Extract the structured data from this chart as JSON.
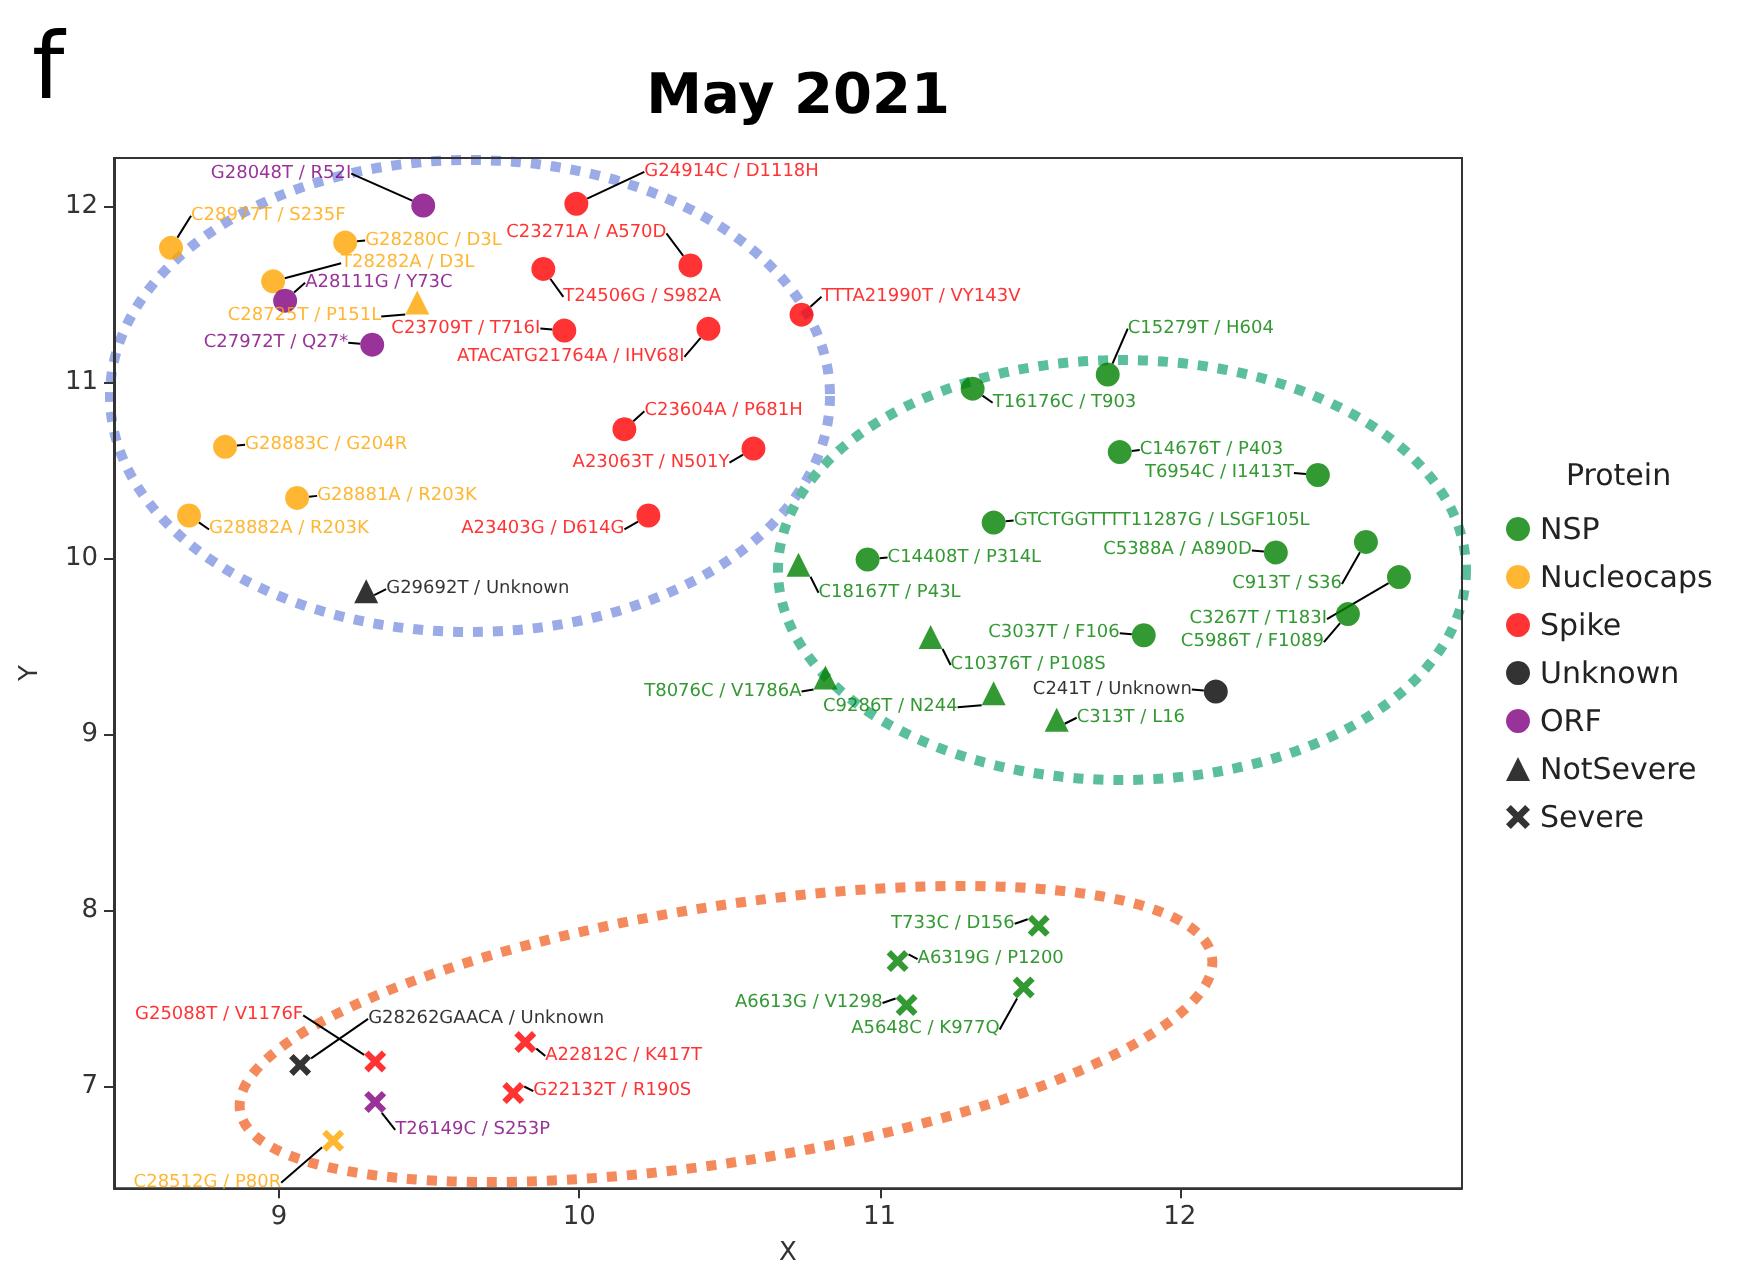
{
  "chart_data": {
    "type": "scatter",
    "title": "May 2021",
    "xlabel": "X",
    "ylabel": "Y",
    "legend_title": "Protein",
    "annotations": [
      "f"
    ],
    "xlim": [
      8.45,
      12.94
    ],
    "ylim": [
      6.42,
      12.27
    ],
    "xticks": [
      9,
      10,
      11,
      12
    ],
    "yticks": [
      7,
      8,
      9,
      10,
      11,
      12
    ],
    "grid": false,
    "legend": "right",
    "series": [
      {
        "name": "NSP",
        "color": "#008000",
        "marker": "circle",
        "x": [
          11.76,
          11.31,
          11.8,
          12.46,
          11.38,
          12.62,
          12.32,
          12.73,
          12.56,
          10.96,
          11.88
        ],
        "values": [
          11.04,
          10.96,
          10.6,
          10.47,
          10.2,
          10.09,
          10.03,
          9.89,
          9.68,
          9.99,
          9.56
        ],
        "value_labels": [
          "C15279T / H604",
          "T16176C / T903",
          "C14676T / P403",
          "T6954C / I1413T",
          "GTCTGGTTTT11287G / LSGF105L",
          "C913T / S36",
          "C5388A / A890D",
          "C3267T / T183I",
          "C5986T / F1089",
          "C14408T / P314L",
          "C3037T / F106"
        ]
      },
      {
        "name": "Nucleocaps",
        "color": "#ffa500",
        "marker": "circle",
        "x": [
          8.64,
          9.22,
          8.98,
          8.82,
          9.06,
          8.7
        ],
        "values": [
          11.76,
          11.79,
          11.57,
          10.63,
          10.34,
          10.24
        ],
        "value_labels": [
          "C28977T / S235F",
          "G28280C / D3L",
          "T28282A / D3L",
          "G28883C / G204R",
          "G28881A / R203K",
          "G28882A / R203K"
        ]
      },
      {
        "name": "Spike",
        "color": "#ff0000",
        "marker": "circle",
        "x": [
          9.99,
          9.88,
          10.37,
          9.95,
          10.43,
          10.74,
          10.15,
          10.58,
          10.23
        ],
        "values": [
          12.01,
          11.64,
          11.66,
          11.29,
          11.3,
          11.38,
          10.73,
          10.62,
          10.24
        ],
        "value_labels": [
          "G24914C / D1118H",
          "T24506G / S982A",
          "C23271A / A570D",
          "C23709T / T716I",
          "ATACATG21764A / IHV68I",
          "TTTA21990T / VY143V",
          "C23604A / P681H",
          "A23063T / N501Y",
          "A23403G / D614G"
        ]
      },
      {
        "name": "Unknown",
        "color": "#000000",
        "marker": "circle",
        "x": [
          12.12
        ],
        "values": [
          9.24
        ],
        "value_labels": [
          "C241T / Unknown"
        ]
      },
      {
        "name": "ORF",
        "color": "#800080",
        "marker": "circle",
        "x": [
          9.48,
          9.02,
          9.31
        ],
        "values": [
          12.0,
          11.46,
          11.21
        ],
        "value_labels": [
          "G28048T / R52I",
          "A28111G / Y73C",
          "C27972T / Q27*"
        ]
      },
      {
        "name": "NotSevere",
        "color": "#000000",
        "marker": "triangle",
        "x": [
          9.29
        ],
        "values": [
          9.81
        ],
        "value_labels": [
          "G29692T / Unknown"
        ]
      },
      {
        "color": "#008000",
        "marker": "triangle",
        "x": [
          10.73,
          11.17,
          10.82,
          11.38,
          11.59
        ],
        "values": [
          9.96,
          9.55,
          9.32,
          9.23,
          9.08
        ],
        "value_labels": [
          "C18167T / P43L",
          "C10376T / P108S",
          "T8076C / V1786A",
          "C9286T / N244",
          "C313T / L16"
        ]
      },
      {
        "color": "#ffa500",
        "marker": "triangle",
        "x": [
          9.46
        ],
        "values": [
          11.45
        ],
        "value_labels": [
          "C28725T / P151L"
        ]
      },
      {
        "name": "Severe",
        "color": "#000000",
        "marker": "cross",
        "x": [
          9.07
        ],
        "values": [
          7.12
        ],
        "value_labels": [
          "G28262GAACA / Unknown"
        ]
      },
      {
        "color": "#008000",
        "marker": "cross",
        "x": [
          11.53,
          11.06,
          11.48,
          11.09
        ],
        "values": [
          7.91,
          7.71,
          7.56,
          7.46
        ],
        "value_labels": [
          "T733C / D156",
          "A6319G / P1200",
          "A5648C / K977Q",
          "A6613G / V1298"
        ]
      },
      {
        "color": "#ff0000",
        "marker": "cross",
        "x": [
          9.32,
          9.82,
          9.78
        ],
        "values": [
          7.14,
          7.25,
          6.96
        ],
        "value_labels": [
          "G25088T / V1176F",
          "A22812C / K417T",
          "G22132T / R190S"
        ]
      },
      {
        "color": "#800080",
        "marker": "cross",
        "x": [
          9.32
        ],
        "values": [
          6.91
        ],
        "value_labels": [
          "T26149C / S253P"
        ]
      },
      {
        "color": "#ffa500",
        "marker": "cross",
        "x": [
          9.18
        ],
        "values": [
          6.69
        ],
        "value_labels": [
          "C28512G / P80R"
        ]
      }
    ]
  }
}
